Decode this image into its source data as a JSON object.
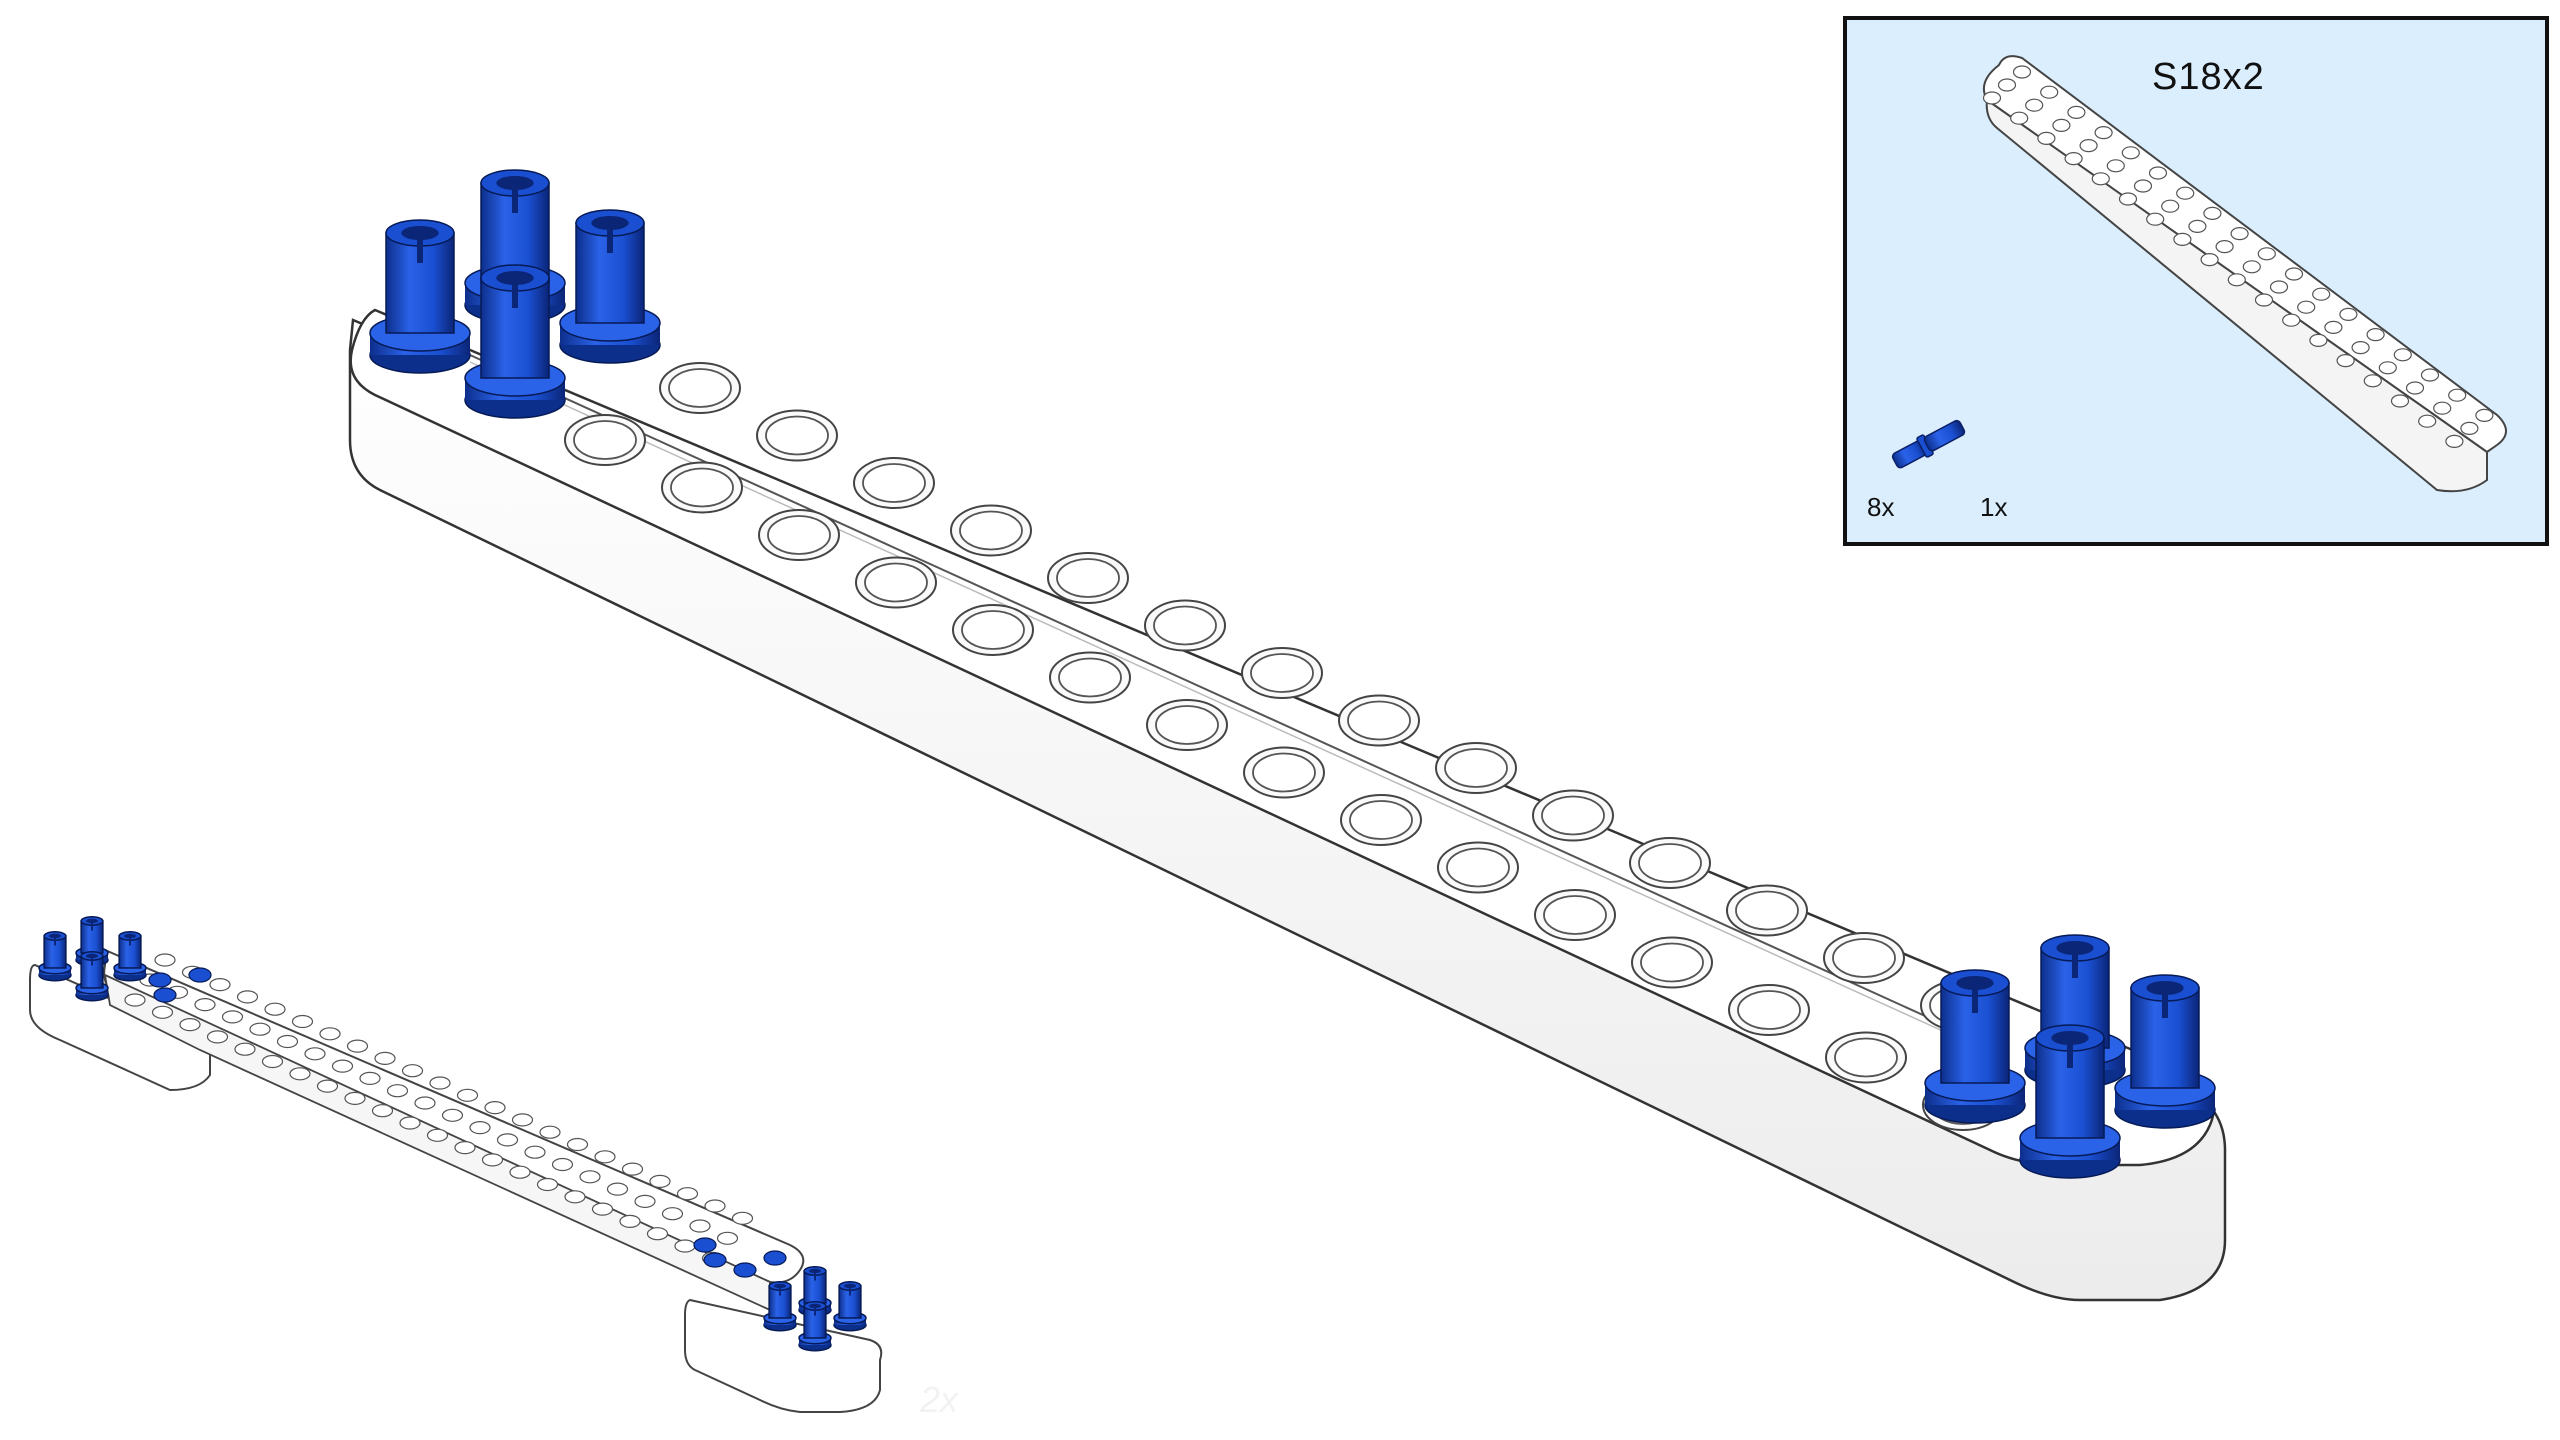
{
  "parts_list": {
    "part_name": "S18x2",
    "items": [
      {
        "icon": "blue-connector-pin-icon",
        "quantity": "8x"
      },
      {
        "icon": "white-beam-icon",
        "quantity": "1x"
      }
    ]
  },
  "colors": {
    "beam_white": "#ffffff",
    "beam_shadow": "#f0f0f0",
    "pin_blue": "#1a4fd1",
    "pin_blue_dark": "#0d2f8c",
    "parts_box_background": "#dbeefd",
    "outline": "#333333"
  }
}
